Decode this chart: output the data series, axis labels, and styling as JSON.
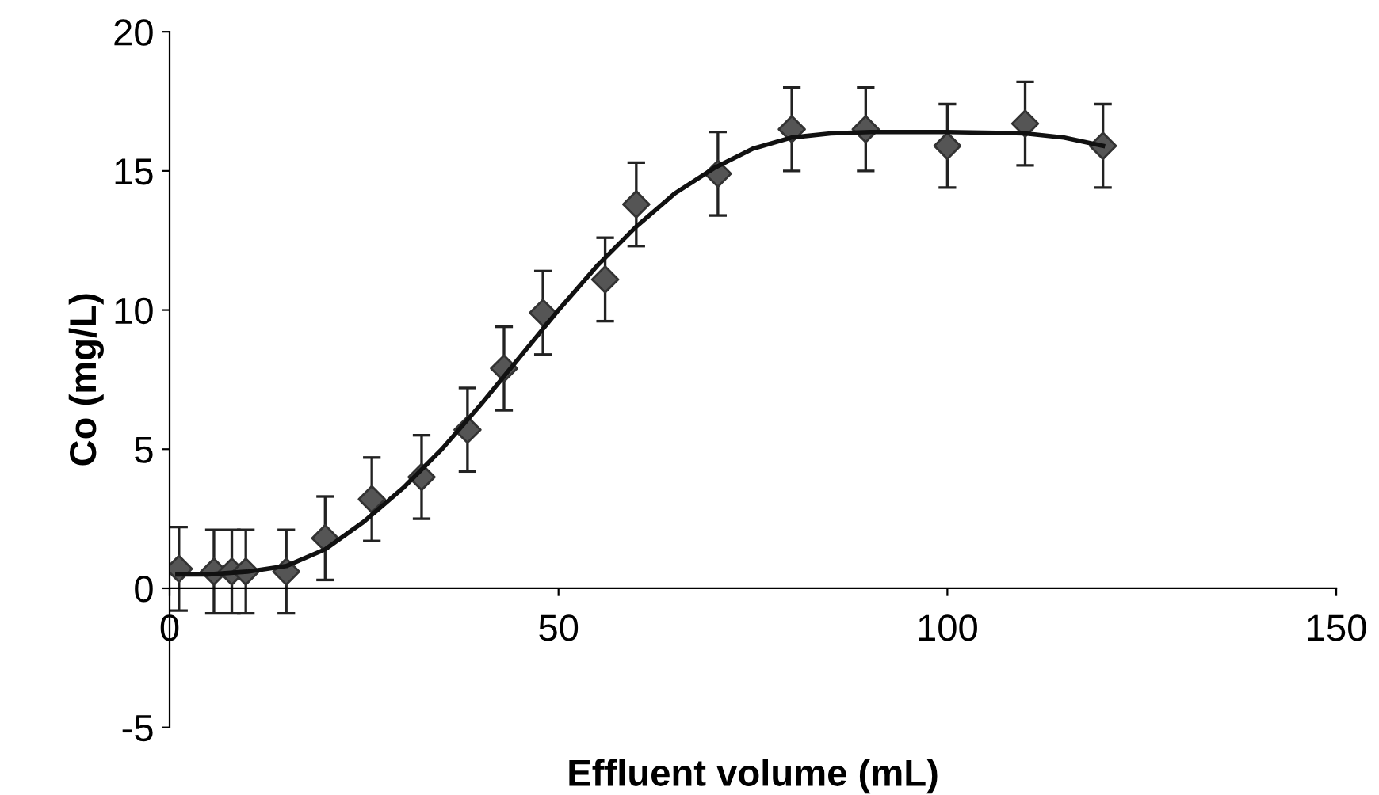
{
  "chart_data": {
    "type": "scatter",
    "xlabel": "Effluent volume (mL)",
    "ylabel": "Co (mg/L)",
    "xlim": [
      0,
      150
    ],
    "xticks": [
      0,
      50,
      100,
      150
    ],
    "ylim": [
      -5,
      20
    ],
    "yticks": [
      -5,
      0,
      5,
      10,
      15,
      20
    ],
    "grid": false,
    "series": [
      {
        "marker": "diamond",
        "color": "#555555",
        "x": [
          1.2,
          5.7,
          8,
          9.8,
          15,
          20,
          26,
          32.4,
          38.3,
          43,
          48,
          56,
          60,
          70.5,
          80,
          89.5,
          100,
          110,
          120
        ],
        "values": [
          0.7,
          0.6,
          0.6,
          0.6,
          0.6,
          1.8,
          3.2,
          4.0,
          5.7,
          7.9,
          9.9,
          11.1,
          13.8,
          14.9,
          16.5,
          16.5,
          15.9,
          16.7,
          15.9
        ],
        "errors": [
          1.5,
          1.5,
          1.5,
          1.5,
          1.5,
          1.5,
          1.5,
          1.5,
          1.5,
          1.5,
          1.5,
          1.5,
          1.5,
          1.5,
          1.5,
          1.5,
          1.5,
          1.5,
          1.5
        ]
      },
      {
        "type": "line",
        "marker": "none",
        "color": "#111111",
        "x": [
          1,
          5,
          10,
          15,
          20,
          25,
          30,
          35,
          40,
          45,
          50,
          55,
          60,
          65,
          70,
          75,
          80,
          85,
          90,
          100,
          110,
          115,
          120
        ],
        "values": [
          0.5,
          0.5,
          0.6,
          0.8,
          1.4,
          2.4,
          3.6,
          5.0,
          6.6,
          8.3,
          10.0,
          11.6,
          13.0,
          14.2,
          15.1,
          15.8,
          16.2,
          16.35,
          16.4,
          16.4,
          16.35,
          16.2,
          15.9
        ]
      }
    ]
  }
}
